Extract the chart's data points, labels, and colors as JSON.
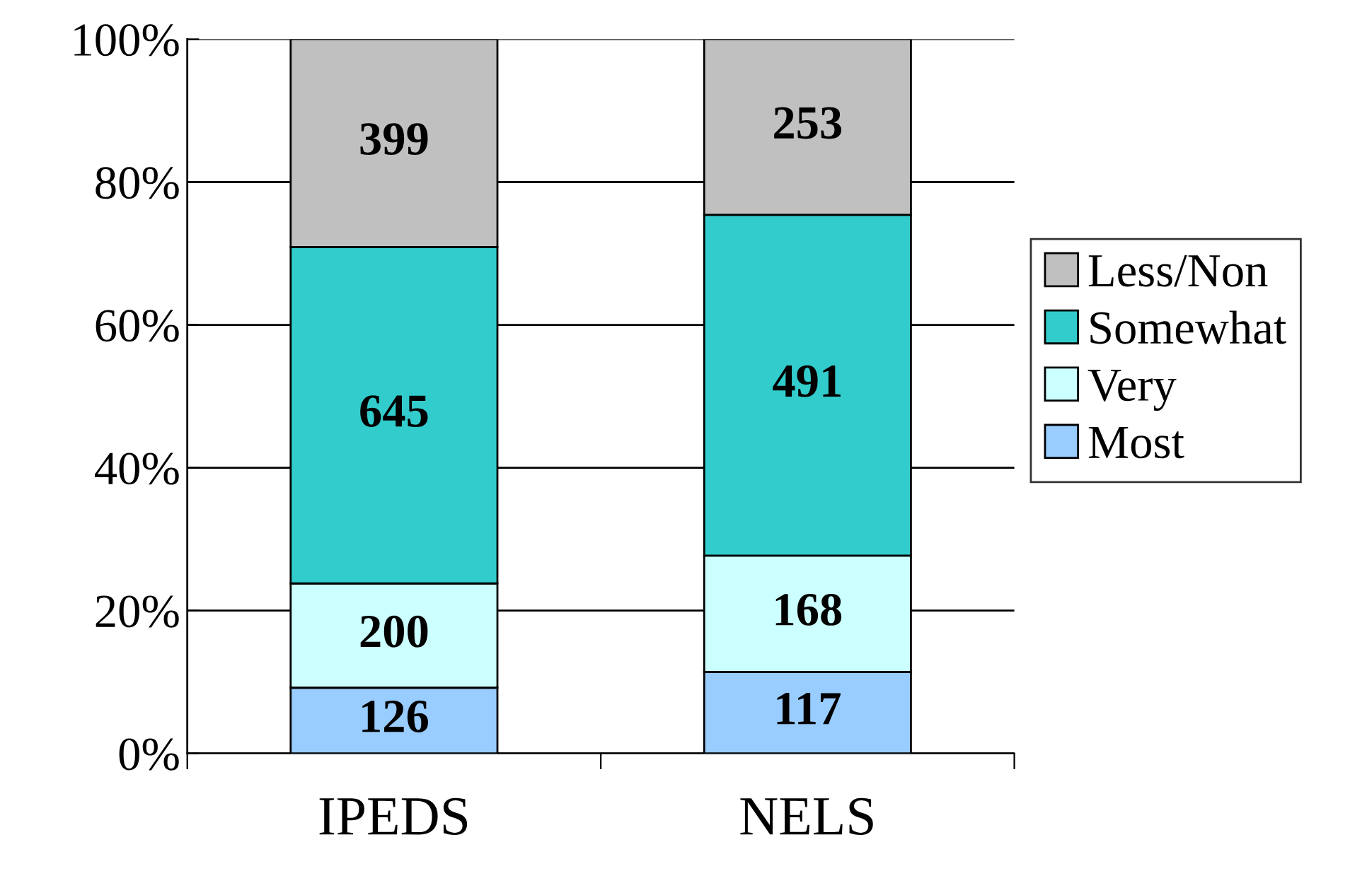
{
  "chart_data": {
    "type": "bar",
    "stacked": true,
    "categories": [
      "IPEDS",
      "NELS"
    ],
    "series": [
      {
        "name": "Most",
        "color": "#99ccff",
        "values": [
          9.2,
          11.4
        ]
      },
      {
        "name": "Very",
        "color": "#ccffff",
        "values": [
          14.6,
          16.3
        ]
      },
      {
        "name": "Somewhat",
        "color": "#33cccc",
        "values": [
          47.1,
          47.7
        ]
      },
      {
        "name": "Less/Non",
        "color": "#c0c0c0",
        "values": [
          29.1,
          24.6
        ]
      }
    ],
    "annotations": [
      "126",
      "117",
      "200",
      "168",
      "645",
      "491",
      "399",
      "253"
    ],
    "ylim": [
      0,
      100
    ],
    "yticks": [
      {
        "value": 0,
        "label": "0%"
      },
      {
        "value": 20,
        "label": "20%"
      },
      {
        "value": 40,
        "label": "40%"
      },
      {
        "value": 60,
        "label": "60%"
      },
      {
        "value": 80,
        "label": "80%"
      },
      {
        "value": 100,
        "label": "100%"
      }
    ],
    "grid": "y",
    "legend": "right"
  }
}
